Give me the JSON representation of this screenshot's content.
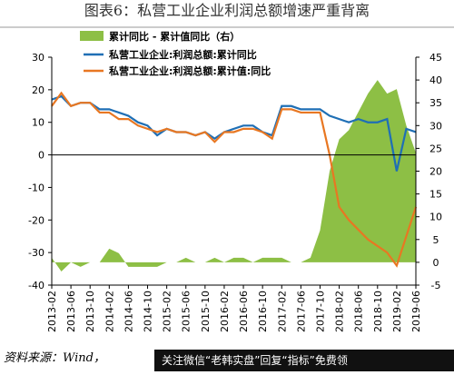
{
  "chart_data": {
    "type": "line",
    "title": "图表6：私营工业企业利润总额增速严重背离",
    "source": "资料来源：Wind，",
    "banner": "关注微信“老韩实盘”回复“指标”免费领",
    "categories": [
      "2013-02",
      null,
      "2013-06",
      null,
      "2013-10",
      null,
      "2014-02",
      null,
      "2014-06",
      null,
      "2014-10",
      null,
      "2015-02",
      null,
      "2015-06",
      null,
      "2015-10",
      null,
      "2016-02",
      null,
      "2016-06",
      null,
      "2016-10",
      null,
      "2017-02",
      null,
      "2017-06",
      null,
      "2017-10",
      null,
      "2018-02",
      null,
      "2018-06",
      null,
      "2018-10",
      null,
      "2019-02",
      null,
      "2019-06"
    ],
    "series": [
      {
        "name": "累计同比 - 累计值同比（右）",
        "color": "#8dbf45",
        "axis": "y2",
        "kind": "area",
        "values": [
          1,
          -2,
          0,
          -1,
          0,
          0,
          3,
          2,
          -1,
          -1,
          -1,
          -1,
          0,
          0,
          1,
          0,
          0,
          1,
          0,
          1,
          1,
          0,
          1,
          1,
          1,
          0,
          0,
          1,
          7,
          20,
          27,
          29,
          33,
          37,
          40,
          37,
          38,
          30,
          24
        ]
      },
      {
        "name": "私营工业企业:利润总额:累计同比",
        "color": "#1f6fb5",
        "values": [
          17,
          18,
          15,
          16,
          16,
          14,
          14,
          13,
          12,
          10,
          9,
          6,
          8,
          7,
          7,
          6,
          7,
          5,
          7,
          8,
          9,
          9,
          7,
          6,
          15,
          15,
          14,
          14,
          14,
          12,
          11,
          10,
          11,
          10,
          10,
          11,
          -5,
          8,
          7
        ]
      },
      {
        "name": "私营工业企业:利润总额:累计值:同比",
        "color": "#e87722",
        "values": [
          15,
          19,
          15,
          16,
          16,
          13,
          13,
          11,
          11,
          9,
          8,
          7,
          8,
          7,
          7,
          6,
          7,
          4,
          7,
          7,
          8,
          8,
          7,
          5,
          14,
          14,
          13,
          13,
          13,
          0,
          -16,
          -20,
          -23,
          -26,
          -28,
          -30,
          -34,
          -25,
          -16
        ]
      }
    ],
    "ylim": [
      -40,
      30
    ],
    "yticks": [
      -40,
      -30,
      -20,
      -10,
      0,
      10,
      20,
      30
    ],
    "y2lim": [
      -5,
      45
    ],
    "y2ticks": [
      -5,
      0,
      5,
      10,
      15,
      20,
      25,
      30,
      35,
      40,
      45
    ]
  }
}
